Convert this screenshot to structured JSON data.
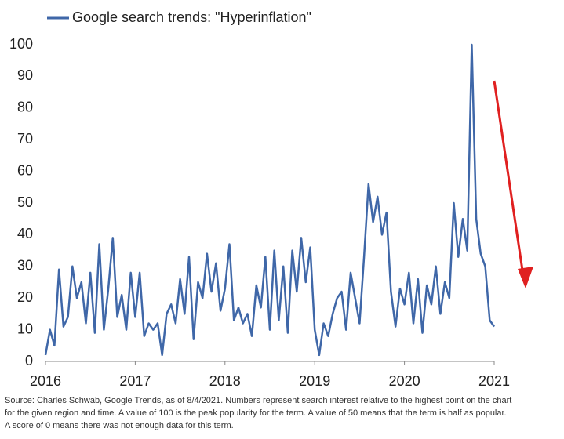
{
  "chart_data": {
    "type": "line",
    "legend": "top-left",
    "xlim": [
      2016,
      2021
    ],
    "xticks": [
      2016,
      2017,
      2018,
      2019,
      2020,
      2021
    ],
    "ylim": [
      0,
      100
    ],
    "yticks": [
      0,
      10,
      20,
      30,
      40,
      50,
      60,
      70,
      80,
      90,
      100
    ],
    "grid": false,
    "x": [
      2016.0,
      2016.05,
      2016.1,
      2016.15,
      2016.2,
      2016.25,
      2016.3,
      2016.35,
      2016.4,
      2016.45,
      2016.5,
      2016.55,
      2016.6,
      2016.65,
      2016.7,
      2016.75,
      2016.8,
      2016.85,
      2016.9,
      2016.95,
      2017.0,
      2017.05,
      2017.1,
      2017.15,
      2017.2,
      2017.25,
      2017.3,
      2017.35,
      2017.4,
      2017.45,
      2017.5,
      2017.55,
      2017.6,
      2017.65,
      2017.7,
      2017.75,
      2017.8,
      2017.85,
      2017.9,
      2017.95,
      2018.0,
      2018.05,
      2018.1,
      2018.15,
      2018.2,
      2018.25,
      2018.3,
      2018.35,
      2018.4,
      2018.45,
      2018.5,
      2018.55,
      2018.6,
      2018.65,
      2018.7,
      2018.75,
      2018.8,
      2018.85,
      2018.9,
      2018.95,
      2019.0,
      2019.05,
      2019.1,
      2019.15,
      2019.2,
      2019.25,
      2019.3,
      2019.35,
      2019.4,
      2019.45,
      2019.5,
      2019.55,
      2019.6,
      2019.65,
      2019.7,
      2019.75,
      2019.8,
      2019.85,
      2019.9,
      2019.95,
      2020.0,
      2020.05,
      2020.1,
      2020.15,
      2020.2,
      2020.25,
      2020.3,
      2020.35,
      2020.4,
      2020.45,
      2020.5,
      2020.55,
      2020.6,
      2020.65,
      2020.7,
      2020.75,
      2020.8,
      2020.85,
      2020.9,
      2020.95,
      2021.0
    ],
    "series": [
      {
        "name": "Google search trends: \"Hyperinflation\"",
        "color": "#3f67a8",
        "values": [
          2,
          10,
          5,
          29,
          11,
          14,
          30,
          20,
          25,
          12,
          28,
          9,
          37,
          10,
          23,
          39,
          14,
          21,
          10,
          28,
          14,
          28,
          8,
          12,
          10,
          12,
          2,
          15,
          18,
          12,
          26,
          15,
          33,
          7,
          25,
          20,
          34,
          22,
          31,
          16,
          23,
          37,
          13,
          17,
          12,
          15,
          8,
          24,
          17,
          33,
          10,
          35,
          13,
          30,
          9,
          35,
          22,
          39,
          25,
          36,
          10,
          2,
          12,
          8,
          15,
          20,
          22,
          10,
          28,
          20,
          12,
          33,
          56,
          44,
          52,
          40,
          47,
          22,
          11,
          23,
          18,
          28,
          12,
          26,
          9,
          24,
          18,
          30,
          15,
          25,
          20,
          50,
          33,
          45,
          35,
          100,
          45,
          34,
          30,
          13,
          11
        ]
      }
    ],
    "source": [
      "Source: Charles Schwab, Google Trends, as of 8/4/2021. Numbers represent search interest relative to the highest point on the chart",
      "for the given region and time. A value of 100 is the peak popularity for the term. A value of 50 means that the term is half as popular.",
      "A score of 0 means there was not enough data for this term."
    ]
  }
}
